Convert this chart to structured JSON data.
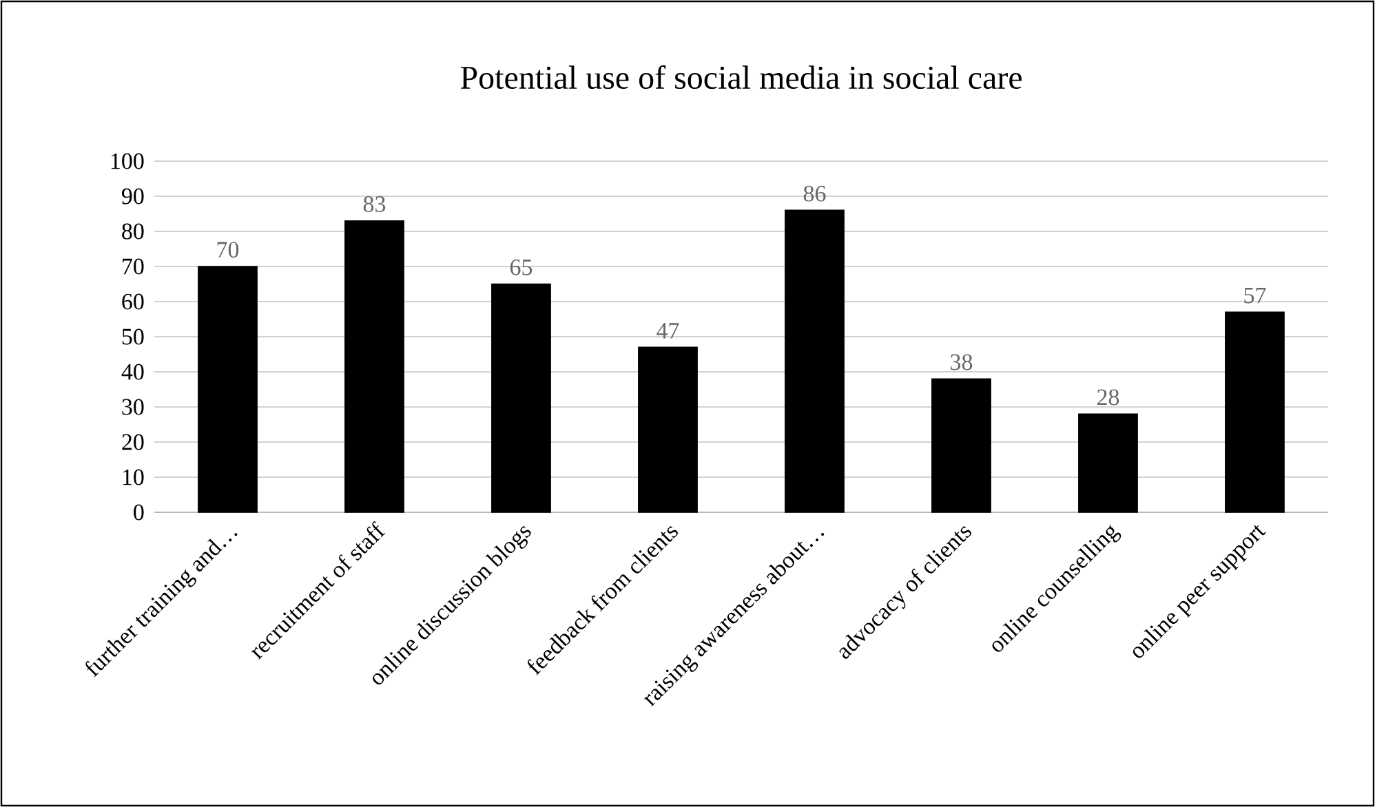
{
  "chart_data": {
    "type": "bar",
    "title": "Potential use of social media in social care",
    "categories": [
      "further training and…",
      "recruitment of staff",
      "online discussion blogs",
      "feedback from clients",
      "raising awareness about…",
      "advocacy of clients",
      "online counselling",
      "online peer support"
    ],
    "values": [
      70,
      83,
      65,
      47,
      86,
      38,
      28,
      57
    ],
    "color": "#000000",
    "ylim": [
      0,
      100
    ],
    "yticks": [
      0,
      10,
      20,
      30,
      40,
      50,
      60,
      70,
      80,
      90,
      100
    ],
    "grid": "y",
    "data_labels": true
  }
}
